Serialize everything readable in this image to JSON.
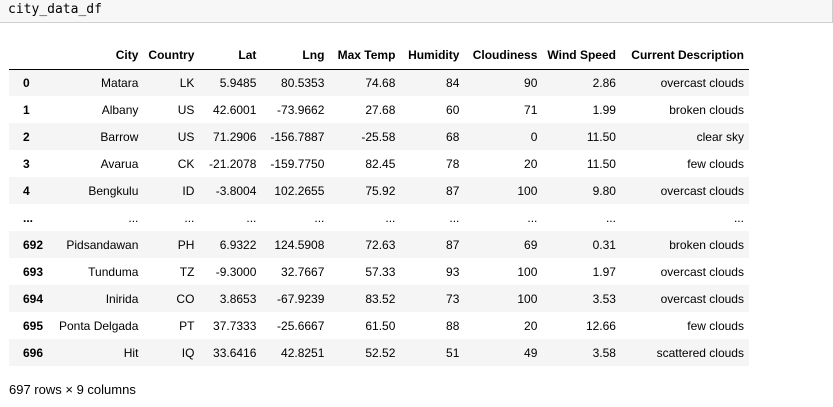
{
  "code_cell": {
    "code": "city_data_df"
  },
  "dataframe": {
    "columns": [
      "",
      "City",
      "Country",
      "Lat",
      "Lng",
      "Max Temp",
      "Humidity",
      "Cloudiness",
      "Wind Speed",
      "Current Description"
    ],
    "rows": [
      {
        "index": "0",
        "cells": [
          "Matara",
          "LK",
          "5.9485",
          "80.5353",
          "74.68",
          "84",
          "90",
          "2.86",
          "overcast clouds"
        ]
      },
      {
        "index": "1",
        "cells": [
          "Albany",
          "US",
          "42.6001",
          "-73.9662",
          "27.68",
          "60",
          "71",
          "1.99",
          "broken clouds"
        ]
      },
      {
        "index": "2",
        "cells": [
          "Barrow",
          "US",
          "71.2906",
          "-156.7887",
          "-25.58",
          "68",
          "0",
          "11.50",
          "clear sky"
        ]
      },
      {
        "index": "3",
        "cells": [
          "Avarua",
          "CK",
          "-21.2078",
          "-159.7750",
          "82.45",
          "78",
          "20",
          "11.50",
          "few clouds"
        ]
      },
      {
        "index": "4",
        "cells": [
          "Bengkulu",
          "ID",
          "-3.8004",
          "102.2655",
          "75.92",
          "87",
          "100",
          "9.80",
          "overcast clouds"
        ]
      },
      {
        "index": "...",
        "cells": [
          "...",
          "...",
          "...",
          "...",
          "...",
          "...",
          "...",
          "...",
          "..."
        ]
      },
      {
        "index": "692",
        "cells": [
          "Pidsandawan",
          "PH",
          "6.9322",
          "124.5908",
          "72.63",
          "87",
          "69",
          "0.31",
          "broken clouds"
        ]
      },
      {
        "index": "693",
        "cells": [
          "Tunduma",
          "TZ",
          "-9.3000",
          "32.7667",
          "57.33",
          "93",
          "100",
          "1.97",
          "overcast clouds"
        ]
      },
      {
        "index": "694",
        "cells": [
          "Inirida",
          "CO",
          "3.8653",
          "-67.9239",
          "83.52",
          "73",
          "100",
          "3.53",
          "overcast clouds"
        ]
      },
      {
        "index": "695",
        "cells": [
          "Ponta Delgada",
          "PT",
          "37.7333",
          "-25.6667",
          "61.50",
          "88",
          "20",
          "12.66",
          "few clouds"
        ]
      },
      {
        "index": "696",
        "cells": [
          "Hit",
          "IQ",
          "33.6416",
          "42.8251",
          "52.52",
          "51",
          "49",
          "3.58",
          "scattered clouds"
        ]
      }
    ],
    "shape_text": "697 rows × 9 columns"
  },
  "colors": {
    "code_bg": "#f7f7f7",
    "code_border": "#cfcfcf",
    "row_stripe": "#f5f5f5",
    "header_rule": "#000000"
  }
}
